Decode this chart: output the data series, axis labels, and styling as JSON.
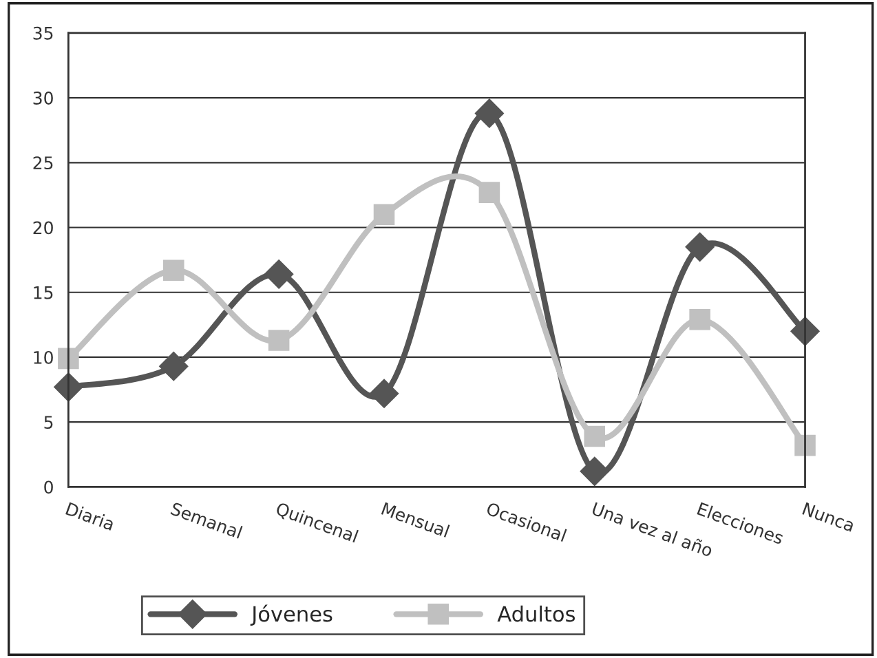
{
  "chart_data": {
    "type": "line",
    "categories": [
      "Diaria",
      "Semanal",
      "Quincenal",
      "Mensual",
      "Ocasional",
      "Una vez al año",
      "Elecciones",
      "Nunca"
    ],
    "series": [
      {
        "name": "Jóvenes",
        "color": "#555555",
        "marker": "diamond",
        "values": [
          7.7,
          9.3,
          16.4,
          7.2,
          28.8,
          1.2,
          18.5,
          12.0
        ]
      },
      {
        "name": "Adultos",
        "color": "#c0c0c0",
        "marker": "square",
        "values": [
          9.9,
          16.7,
          11.3,
          21.0,
          22.7,
          3.9,
          12.9,
          3.2
        ]
      }
    ],
    "ylim": [
      0,
      35
    ],
    "yticks": [
      0,
      5,
      10,
      15,
      20,
      25,
      30,
      35
    ],
    "grid": "y",
    "legend": "bottom",
    "line_style": "solid"
  }
}
